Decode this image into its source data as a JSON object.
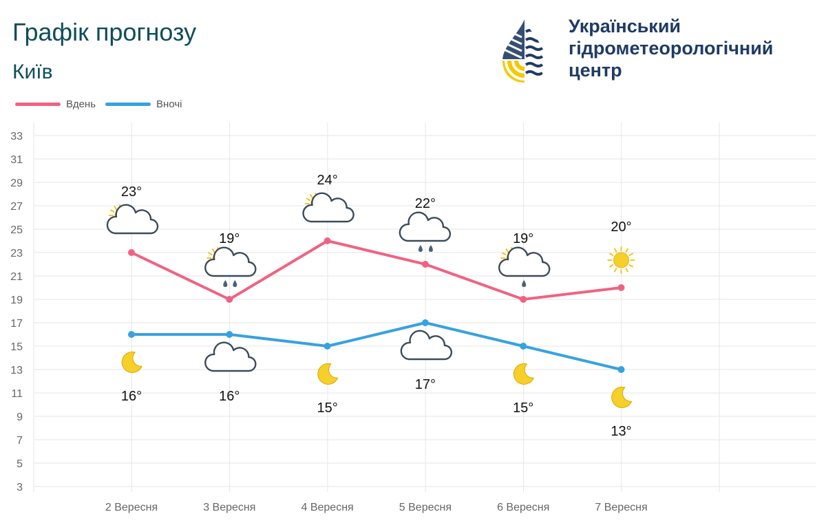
{
  "header": {
    "title": "Графік прогнозу",
    "subtitle": "Київ",
    "org_name": "Український\nгідрометеорологічний\nцентр"
  },
  "legend": [
    {
      "label": "Вдень",
      "color": "#ef6382"
    },
    {
      "label": "Вночі",
      "color": "#36a2e0"
    }
  ],
  "chart_data": {
    "type": "line",
    "categories": [
      "2 Вересня",
      "3 Вересня",
      "4 Вересня",
      "5 Вересня",
      "6 Вересня",
      "7 Вересня"
    ],
    "series": [
      {
        "name": "Вдень",
        "color": "#ef6382",
        "values": [
          23,
          19,
          24,
          22,
          19,
          20
        ],
        "labels": [
          "23°",
          "19°",
          "24°",
          "22°",
          "19°",
          "20°"
        ],
        "icons": [
          "sun-cloud-icon",
          "sun-cloud-rain-icon",
          "sun-cloud-icon",
          "cloud-rain-icon",
          "sun-cloud-light-rain-icon",
          "sun-icon"
        ]
      },
      {
        "name": "Вночі",
        "color": "#36a2e0",
        "values": [
          16,
          16,
          15,
          17,
          15,
          13
        ],
        "labels": [
          "16°",
          "16°",
          "15°",
          "17°",
          "15°",
          "13°"
        ],
        "icons": [
          "moon-icon",
          "moon-cloud-icon",
          "moon-icon",
          "moon-cloud-icon",
          "moon-icon",
          "moon-icon"
        ]
      }
    ],
    "yticks": [
      33,
      31,
      29,
      27,
      25,
      23,
      21,
      19,
      17,
      15,
      13,
      11,
      9,
      7,
      5,
      3
    ],
    "ylim": [
      3,
      34
    ],
    "grid": true,
    "legend_position": "top-left"
  }
}
